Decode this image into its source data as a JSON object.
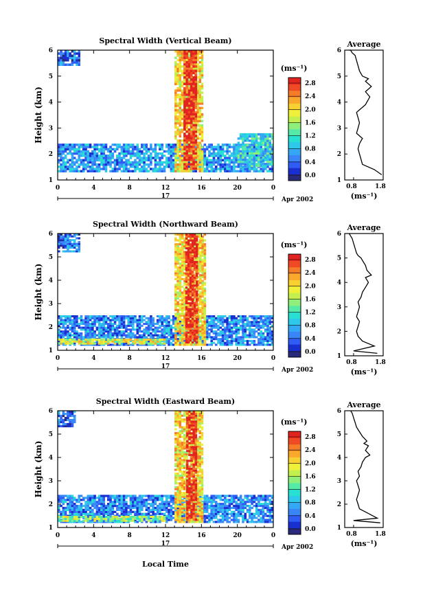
{
  "figure": {
    "xlabel": "Local Time",
    "date_label": "Apr 2002",
    "day_label": "17",
    "average_title": "Average",
    "unit_label": "(ms⁻¹)",
    "ylabel": "Height (km)"
  },
  "colorbar": {
    "label": "(ms⁻¹)",
    "colors": [
      "#2a2a7c",
      "#1a2fd0",
      "#2f5cf5",
      "#3a86f8",
      "#35a8f5",
      "#2ec9ea",
      "#28e0d2",
      "#55eaa8",
      "#8ef07a",
      "#c4f04e",
      "#eef03a",
      "#f8d032",
      "#f9a82c",
      "#f57c28",
      "#ef4a24",
      "#e22420"
    ],
    "ticks": [
      "0.0",
      "0.4",
      "0.8",
      "1.2",
      "1.6",
      "2.0",
      "2.4",
      "2.8"
    ]
  },
  "chart_data": [
    {
      "type": "heatmap",
      "title": "Spectral Width (Vertical Beam)",
      "xlabel": "",
      "ylabel": "Height (km)",
      "xlim": [
        0,
        24
      ],
      "ylim": [
        1,
        6
      ],
      "xticks": [
        "0",
        "4",
        "8",
        "12",
        "16",
        "20",
        "0"
      ],
      "yticks": [
        "1",
        "2",
        "3",
        "4",
        "5",
        "6"
      ],
      "colorbar_ticks": [
        "0.0",
        "0.4",
        "0.8",
        "1.2",
        "1.6",
        "2.0",
        "2.4",
        "2.8"
      ],
      "colorbar_label": "(ms⁻¹)",
      "regions": [
        {
          "x0": 0.0,
          "x1": 24.0,
          "y0": 1.3,
          "y1": 2.4,
          "level": 0.7
        },
        {
          "x0": 0.0,
          "x1": 2.5,
          "y0": 5.4,
          "y1": 6.0,
          "level": 0.5
        },
        {
          "x0": 13.0,
          "x1": 16.2,
          "y0": 1.3,
          "y1": 6.0,
          "level": 2.0
        },
        {
          "x0": 14.0,
          "x1": 15.5,
          "y0": 1.4,
          "y1": 6.0,
          "level": 2.8
        },
        {
          "x0": 20.0,
          "x1": 24.0,
          "y0": 1.5,
          "y1": 2.8,
          "level": 1.0
        }
      ]
    },
    {
      "type": "heatmap",
      "title": "Spectral Width (Northward Beam)",
      "xlabel": "",
      "ylabel": "Height (km)",
      "xlim": [
        0,
        24
      ],
      "ylim": [
        1,
        6
      ],
      "xticks": [
        "0",
        "4",
        "8",
        "12",
        "16",
        "20",
        "0"
      ],
      "yticks": [
        "1",
        "2",
        "3",
        "4",
        "5",
        "6"
      ],
      "colorbar_ticks": [
        "0.0",
        "0.4",
        "0.8",
        "1.2",
        "1.6",
        "2.0",
        "2.4",
        "2.8"
      ],
      "colorbar_label": "(ms⁻¹)",
      "regions": [
        {
          "x0": 0.0,
          "x1": 24.0,
          "y0": 1.2,
          "y1": 2.5,
          "level": 0.6
        },
        {
          "x0": 0.0,
          "x1": 2.5,
          "y0": 5.2,
          "y1": 6.0,
          "level": 0.5
        },
        {
          "x0": 13.0,
          "x1": 16.5,
          "y0": 1.2,
          "y1": 6.0,
          "level": 2.0
        },
        {
          "x0": 14.2,
          "x1": 15.6,
          "y0": 1.3,
          "y1": 6.0,
          "level": 2.8
        },
        {
          "x0": 0.0,
          "x1": 12.0,
          "y0": 1.25,
          "y1": 1.5,
          "level": 1.8
        }
      ]
    },
    {
      "type": "heatmap",
      "title": "Spectral Width (Eastward Beam)",
      "xlabel": "Local Time",
      "ylabel": "Height (km)",
      "xlim": [
        0,
        24
      ],
      "ylim": [
        1,
        6
      ],
      "xticks": [
        "0",
        "4",
        "8",
        "12",
        "16",
        "20",
        "0"
      ],
      "yticks": [
        "1",
        "2",
        "3",
        "4",
        "5",
        "6"
      ],
      "colorbar_ticks": [
        "0.0",
        "0.4",
        "0.8",
        "1.2",
        "1.6",
        "2.0",
        "2.4",
        "2.8"
      ],
      "colorbar_label": "(ms⁻¹)",
      "regions": [
        {
          "x0": 0.0,
          "x1": 24.0,
          "y0": 1.2,
          "y1": 2.4,
          "level": 0.6
        },
        {
          "x0": 0.0,
          "x1": 2.0,
          "y0": 5.3,
          "y1": 6.0,
          "level": 0.5
        },
        {
          "x0": 13.0,
          "x1": 16.2,
          "y0": 1.2,
          "y1": 6.0,
          "level": 2.0
        },
        {
          "x0": 14.3,
          "x1": 15.5,
          "y0": 1.3,
          "y1": 6.0,
          "level": 2.8
        },
        {
          "x0": 0.0,
          "x1": 12.0,
          "y0": 1.25,
          "y1": 1.5,
          "level": 1.6
        }
      ]
    },
    {
      "type": "line",
      "title": "Average",
      "xlabel": "(ms⁻¹)",
      "ylabel": "",
      "xlim": [
        0.5,
        1.8
      ],
      "ylim": [
        1,
        6
      ],
      "xticks": [
        "0.8",
        "1.8"
      ],
      "yticks": [
        "1",
        "2",
        "3",
        "4",
        "5",
        "6"
      ],
      "x": [
        1.75,
        1.5,
        1.1,
        1.05,
        1.0,
        0.95,
        1.0,
        1.1,
        0.9,
        0.95,
        1.0,
        0.95,
        0.9,
        1.0,
        1.1,
        1.2,
        1.25,
        1.3,
        1.35,
        1.2,
        1.4,
        1.2,
        1.3,
        1.1,
        1.0,
        0.95,
        0.9,
        0.85,
        0.75,
        0.7,
        0.65
      ],
      "y": [
        1.2,
        1.4,
        1.6,
        1.8,
        2.0,
        2.2,
        2.4,
        2.6,
        2.8,
        3.0,
        3.2,
        3.4,
        3.6,
        3.7,
        3.8,
        3.9,
        4.0,
        4.1,
        4.2,
        4.4,
        4.6,
        4.8,
        4.9,
        5.0,
        5.2,
        5.4,
        5.6,
        5.8,
        5.9,
        6.0,
        6.0
      ]
    },
    {
      "type": "line",
      "title": "Average",
      "xlabel": "(ms⁻¹)",
      "ylabel": "",
      "xlim": [
        0.5,
        1.8
      ],
      "ylim": [
        1,
        6
      ],
      "xticks": [
        "0.8",
        "1.8"
      ],
      "yticks": [
        "1",
        "2",
        "3",
        "4",
        "5",
        "6"
      ],
      "x": [
        1.6,
        0.8,
        1.5,
        1.1,
        0.95,
        0.9,
        0.95,
        1.0,
        0.9,
        0.95,
        1.0,
        0.95,
        1.05,
        1.1,
        1.2,
        1.3,
        1.2,
        1.4,
        1.25,
        1.2,
        1.1,
        1.05,
        0.95,
        0.9,
        0.85,
        0.8,
        0.75,
        0.7,
        0.65
      ],
      "y": [
        1.1,
        1.2,
        1.4,
        1.6,
        1.8,
        2.0,
        2.2,
        2.4,
        2.6,
        2.8,
        3.0,
        3.2,
        3.4,
        3.6,
        3.8,
        4.0,
        4.2,
        4.3,
        4.5,
        4.7,
        4.9,
        5.0,
        5.1,
        5.2,
        5.4,
        5.6,
        5.8,
        5.9,
        6.0
      ]
    },
    {
      "type": "line",
      "title": "Average",
      "xlabel": "(ms⁻¹)",
      "ylabel": "",
      "xlim": [
        0.5,
        1.8
      ],
      "ylim": [
        1,
        6
      ],
      "xticks": [
        "0.8",
        "1.8"
      ],
      "yticks": [
        "1",
        "2",
        "3",
        "4",
        "5",
        "6"
      ],
      "x": [
        1.7,
        0.8,
        1.6,
        1.3,
        1.0,
        0.95,
        0.9,
        0.95,
        1.0,
        0.95,
        0.9,
        1.0,
        0.95,
        1.05,
        1.1,
        1.2,
        1.35,
        1.2,
        1.3,
        1.15,
        1.25,
        1.1,
        1.0,
        0.9,
        0.85,
        0.8,
        0.75,
        0.7
      ],
      "y": [
        1.2,
        1.3,
        1.4,
        1.6,
        1.8,
        2.0,
        2.2,
        2.4,
        2.6,
        2.8,
        3.0,
        3.2,
        3.4,
        3.6,
        3.8,
        4.0,
        4.1,
        4.3,
        4.5,
        4.6,
        4.7,
        4.9,
        5.1,
        5.3,
        5.5,
        5.7,
        5.9,
        6.0
      ]
    }
  ]
}
